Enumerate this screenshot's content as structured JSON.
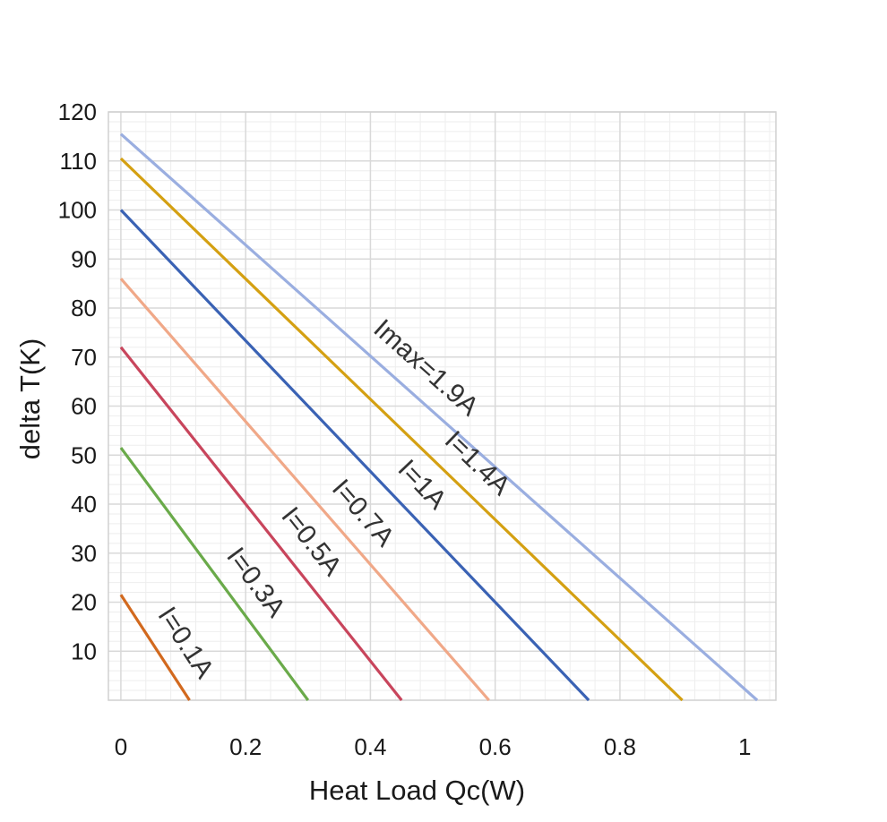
{
  "chart_data": {
    "type": "line",
    "title": "",
    "xlabel": "Heat Load Qc(W)",
    "ylabel": "delta T(K)",
    "xlim": [
      -0.02,
      1.05
    ],
    "ylim": [
      0,
      120
    ],
    "x_ticks": [
      0,
      0.2,
      0.4,
      0.6,
      0.8,
      1
    ],
    "x_tick_labels": [
      "0",
      "0.2",
      "0.4",
      "0.6",
      "0.8",
      "1"
    ],
    "y_ticks": [
      10,
      20,
      30,
      40,
      50,
      60,
      70,
      80,
      90,
      100,
      110,
      120
    ],
    "y_tick_labels": [
      "10",
      "20",
      "30",
      "40",
      "50",
      "60",
      "70",
      "80",
      "90",
      "100",
      "110",
      "120"
    ],
    "grid": true,
    "minor_grid": true,
    "legend": "none",
    "series": [
      {
        "name": "I=0.1A",
        "color": "#d2691e",
        "x": [
          0,
          0.11
        ],
        "y": [
          21.5,
          0
        ]
      },
      {
        "name": "I=0.3A",
        "color": "#6aaa4a",
        "x": [
          0,
          0.3
        ],
        "y": [
          51.5,
          0
        ]
      },
      {
        "name": "I=0.5A",
        "color": "#c8455c",
        "x": [
          0,
          0.45
        ],
        "y": [
          72,
          0
        ]
      },
      {
        "name": "I=0.7A",
        "color": "#f0a888",
        "x": [
          0,
          0.59
        ],
        "y": [
          86,
          0
        ]
      },
      {
        "name": "I=1A",
        "color": "#3a62b4",
        "x": [
          0,
          0.75
        ],
        "y": [
          100,
          0
        ]
      },
      {
        "name": "I=1.4A",
        "color": "#d4a012",
        "x": [
          0,
          0.9
        ],
        "y": [
          110.5,
          0
        ]
      },
      {
        "name": "Imax=1.9A",
        "color": "#9aaee0",
        "x": [
          0,
          1.02
        ],
        "y": [
          115.5,
          0
        ]
      }
    ]
  }
}
